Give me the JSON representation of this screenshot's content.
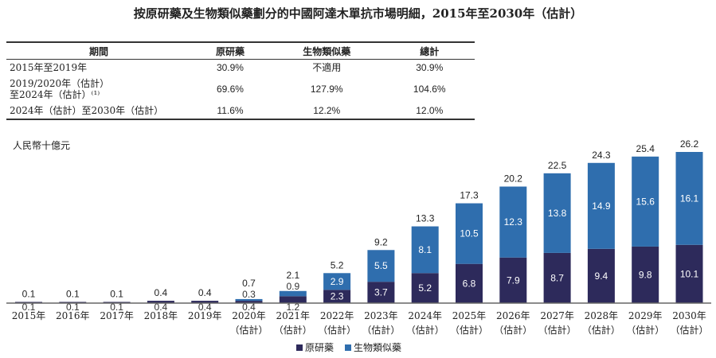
{
  "title": "按原研藥及生物類似藥劃分的中國阿達木單抗市場明細，2015年至2030年（估計）",
  "table": {
    "headers": [
      "期間",
      "原研藥",
      "生物類似藥",
      "總計"
    ],
    "rows": [
      {
        "period": "2015年至2019年",
        "period2": "",
        "original": "30.9%",
        "biosimilar": "不適用",
        "total": "30.9%"
      },
      {
        "period": "2019/2020年（估計）",
        "period2": "至2024年（估計）⁽¹⁾",
        "original": "69.6%",
        "biosimilar": "127.9%",
        "total": "104.6%"
      },
      {
        "period": "2024年（估計）至2030年（估計）",
        "period2": "",
        "original": "11.6%",
        "biosimilar": "12.2%",
        "total": "12.0%"
      }
    ]
  },
  "colors": {
    "original": "#2d2a5b",
    "biosimilar": "#2f6eae"
  },
  "chart_data": {
    "type": "bar",
    "stacked": true,
    "unit_label": "人民幣十億元",
    "categories": [
      "2015年",
      "2016年",
      "2017年",
      "2018年",
      "2019年",
      "2020年\n（估計）",
      "2021年\n（估計）",
      "2022年\n（估計）",
      "2023年\n（估計）",
      "2024年\n（估計）",
      "2025年\n（估計）",
      "2026年\n（估計）",
      "2027年\n（估計）",
      "2028年\n（估計）",
      "2029年\n（估計）",
      "2030年\n（估計）"
    ],
    "series": [
      {
        "name": "原研藥",
        "values": [
          0.1,
          0.1,
          0.1,
          0.4,
          0.4,
          0.4,
          1.2,
          2.3,
          3.7,
          5.2,
          6.8,
          7.9,
          8.7,
          9.4,
          9.8,
          10.1
        ]
      },
      {
        "name": "生物類似藥",
        "values": [
          null,
          null,
          null,
          null,
          null,
          0.3,
          0.9,
          2.9,
          5.5,
          8.1,
          10.5,
          12.3,
          13.8,
          14.9,
          15.6,
          16.1
        ]
      }
    ],
    "totals": [
      0.1,
      0.1,
      0.1,
      0.4,
      0.4,
      0.7,
      2.1,
      5.2,
      9.2,
      13.3,
      17.3,
      20.2,
      22.5,
      24.3,
      25.4,
      26.2
    ],
    "legend": [
      "原研藥",
      "生物類似藥"
    ],
    "legend_position": "bottom",
    "ylim": [
      0,
      26.2
    ]
  }
}
